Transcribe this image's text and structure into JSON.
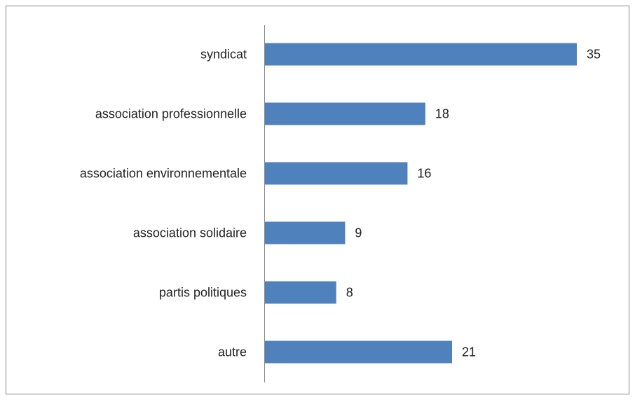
{
  "chart_data": {
    "type": "barh",
    "categories": [
      "syndicat",
      "association professionnelle",
      "association environnementale",
      "association solidaire",
      "partis politiques",
      "autre"
    ],
    "values": [
      35,
      18,
      16,
      9,
      8,
      21
    ],
    "color": "#4f81bd"
  }
}
